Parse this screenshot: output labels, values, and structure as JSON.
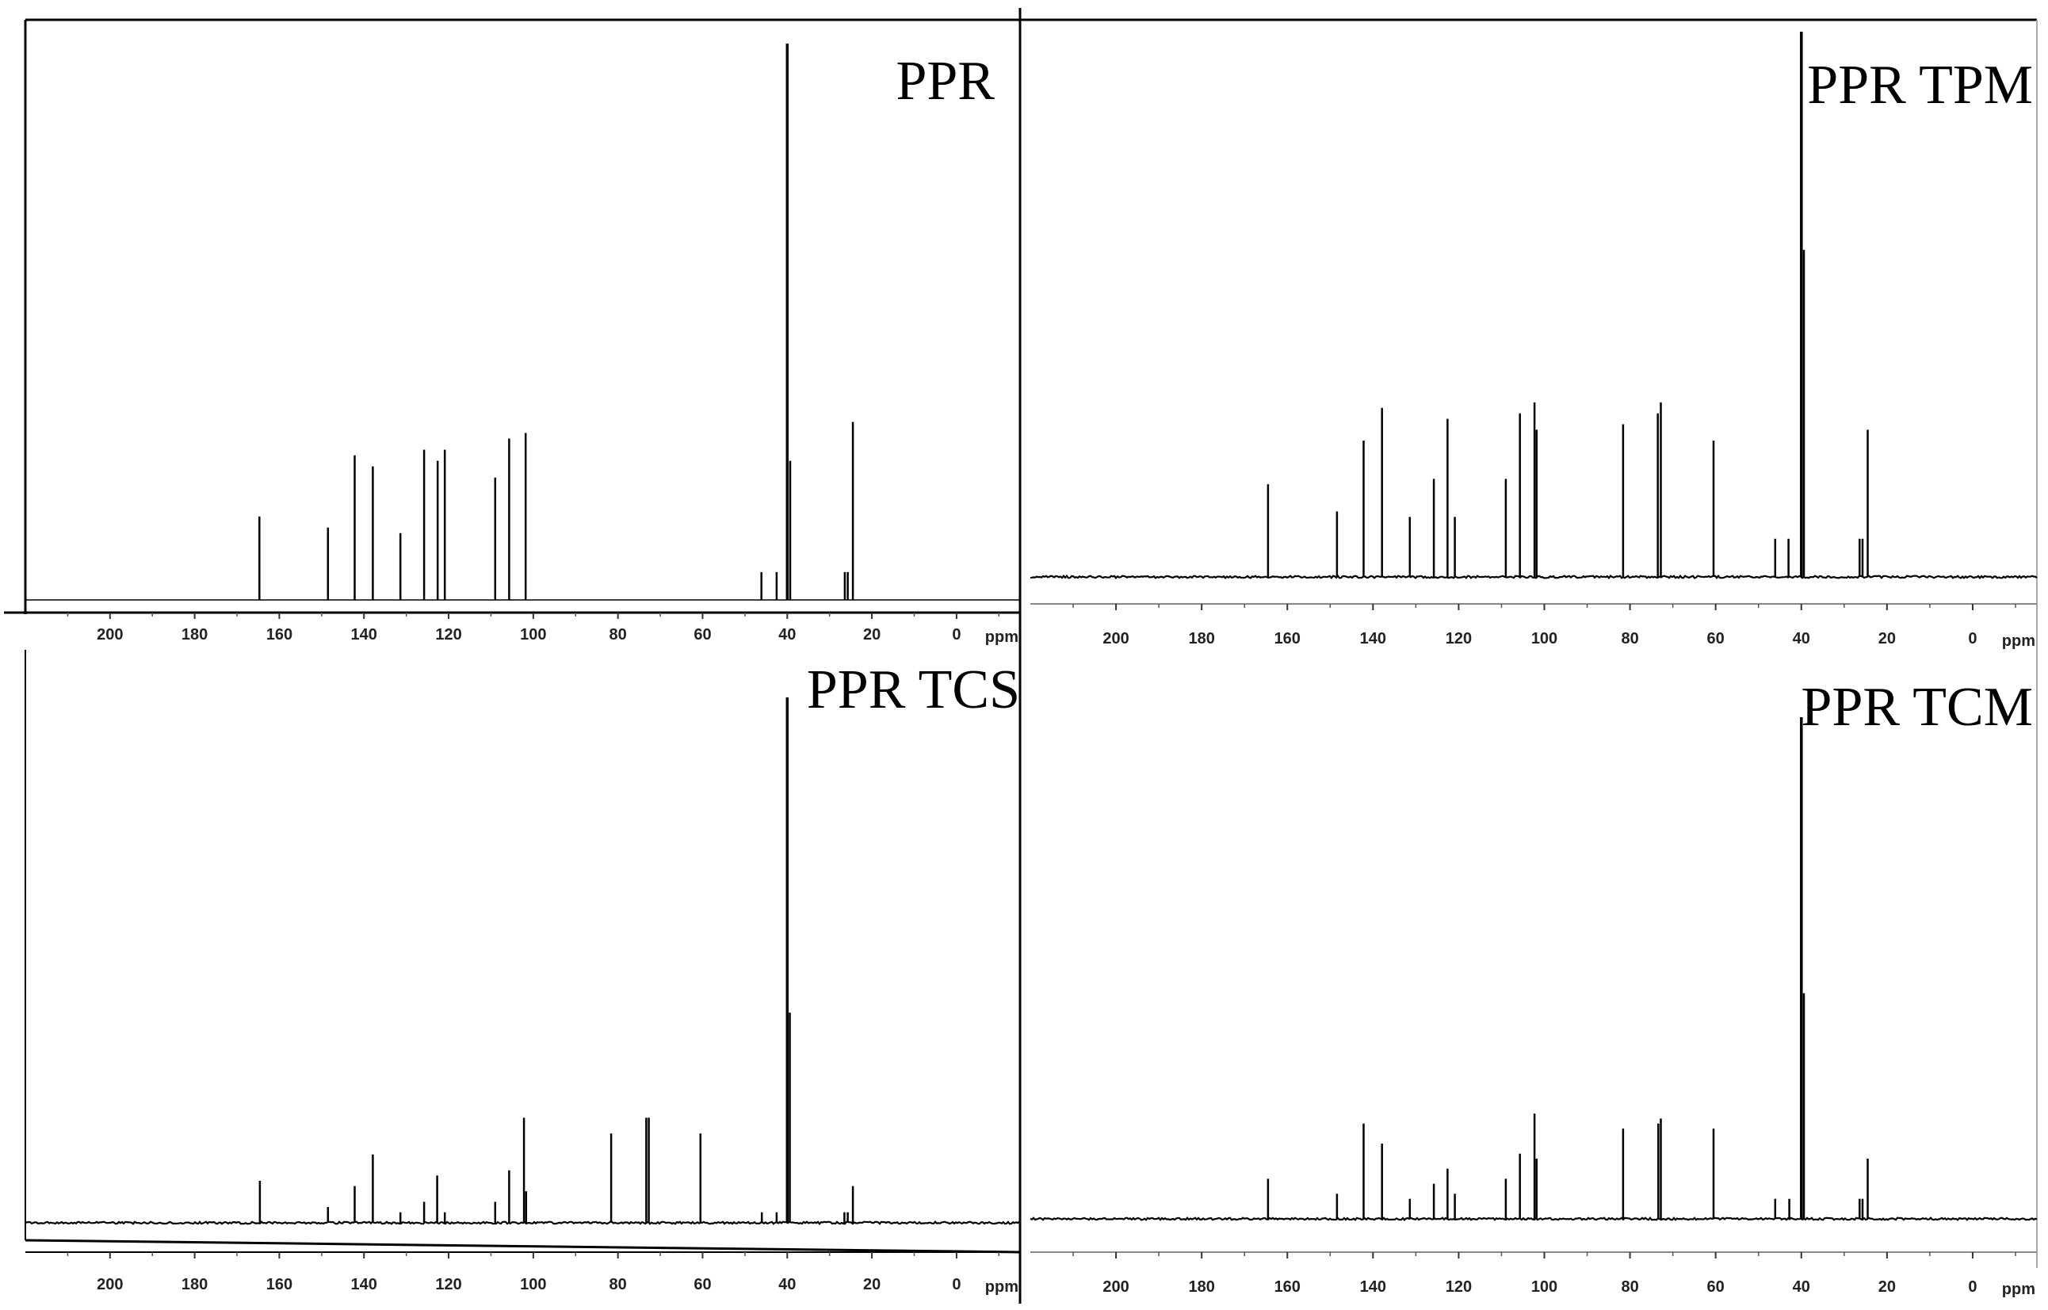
{
  "chart_data": [
    {
      "type": "line",
      "title": "PPR",
      "x_unit": "ppm",
      "x_ticks": [
        200,
        180,
        160,
        140,
        120,
        100,
        80,
        60,
        40,
        20,
        0
      ],
      "xlim": [
        220,
        -15
      ],
      "x_reversed": true,
      "baseline_noise": 0.0,
      "peaks": [
        {
          "ppm": 164.7,
          "h": 0.15
        },
        {
          "ppm": 148.5,
          "h": 0.13
        },
        {
          "ppm": 142.2,
          "h": 0.26
        },
        {
          "ppm": 137.9,
          "h": 0.24
        },
        {
          "ppm": 131.4,
          "h": 0.12
        },
        {
          "ppm": 125.8,
          "h": 0.27
        },
        {
          "ppm": 122.6,
          "h": 0.25
        },
        {
          "ppm": 120.9,
          "h": 0.27
        },
        {
          "ppm": 109.0,
          "h": 0.22
        },
        {
          "ppm": 105.7,
          "h": 0.29
        },
        {
          "ppm": 101.8,
          "h": 0.3
        },
        {
          "ppm": 46.1,
          "h": 0.05
        },
        {
          "ppm": 42.5,
          "h": 0.05
        },
        {
          "ppm": 40.0,
          "h": 1.0
        },
        {
          "ppm": 39.3,
          "h": 0.25
        },
        {
          "ppm": 26.4,
          "h": 0.05
        },
        {
          "ppm": 25.7,
          "h": 0.05
        },
        {
          "ppm": 24.5,
          "h": 0.32
        }
      ]
    },
    {
      "type": "line",
      "title": "PPR TPM",
      "x_unit": "ppm",
      "x_ticks": [
        200,
        180,
        160,
        140,
        120,
        100,
        80,
        60,
        40,
        20,
        0
      ],
      "xlim": [
        220,
        -15
      ],
      "x_reversed": true,
      "baseline_noise": 0.004,
      "peaks": [
        {
          "ppm": 164.5,
          "h": 0.17
        },
        {
          "ppm": 148.4,
          "h": 0.12
        },
        {
          "ppm": 142.2,
          "h": 0.25
        },
        {
          "ppm": 137.9,
          "h": 0.31
        },
        {
          "ppm": 131.4,
          "h": 0.11
        },
        {
          "ppm": 125.8,
          "h": 0.18
        },
        {
          "ppm": 122.6,
          "h": 0.29
        },
        {
          "ppm": 120.9,
          "h": 0.11
        },
        {
          "ppm": 109.0,
          "h": 0.18
        },
        {
          "ppm": 105.7,
          "h": 0.3
        },
        {
          "ppm": 102.3,
          "h": 0.32
        },
        {
          "ppm": 101.8,
          "h": 0.27
        },
        {
          "ppm": 81.6,
          "h": 0.28
        },
        {
          "ppm": 73.5,
          "h": 0.3
        },
        {
          "ppm": 72.8,
          "h": 0.32
        },
        {
          "ppm": 60.5,
          "h": 0.25
        },
        {
          "ppm": 46.1,
          "h": 0.07
        },
        {
          "ppm": 43.0,
          "h": 0.07
        },
        {
          "ppm": 40.0,
          "h": 1.0
        },
        {
          "ppm": 39.4,
          "h": 0.6
        },
        {
          "ppm": 26.4,
          "h": 0.07
        },
        {
          "ppm": 25.7,
          "h": 0.07
        },
        {
          "ppm": 24.5,
          "h": 0.27
        }
      ]
    },
    {
      "type": "line",
      "title": "PPR TCS",
      "x_unit": "ppm",
      "x_ticks": [
        200,
        180,
        160,
        140,
        120,
        100,
        80,
        60,
        40,
        20,
        0
      ],
      "xlim": [
        220,
        -15
      ],
      "x_reversed": true,
      "baseline_noise": 0.004,
      "peaks": [
        {
          "ppm": 164.6,
          "h": 0.08
        },
        {
          "ppm": 148.5,
          "h": 0.03
        },
        {
          "ppm": 142.2,
          "h": 0.07
        },
        {
          "ppm": 137.9,
          "h": 0.13
        },
        {
          "ppm": 131.4,
          "h": 0.02
        },
        {
          "ppm": 125.8,
          "h": 0.04
        },
        {
          "ppm": 122.7,
          "h": 0.09
        },
        {
          "ppm": 120.9,
          "h": 0.02
        },
        {
          "ppm": 109.0,
          "h": 0.04
        },
        {
          "ppm": 105.7,
          "h": 0.1
        },
        {
          "ppm": 102.2,
          "h": 0.2
        },
        {
          "ppm": 101.7,
          "h": 0.06
        },
        {
          "ppm": 81.6,
          "h": 0.17
        },
        {
          "ppm": 73.3,
          "h": 0.2
        },
        {
          "ppm": 72.7,
          "h": 0.2
        },
        {
          "ppm": 60.5,
          "h": 0.17
        },
        {
          "ppm": 46.0,
          "h": 0.02
        },
        {
          "ppm": 42.5,
          "h": 0.02
        },
        {
          "ppm": 40.0,
          "h": 1.0
        },
        {
          "ppm": 39.4,
          "h": 0.4
        },
        {
          "ppm": 26.5,
          "h": 0.02
        },
        {
          "ppm": 25.7,
          "h": 0.02
        },
        {
          "ppm": 24.5,
          "h": 0.07
        }
      ]
    },
    {
      "type": "line",
      "title": "PPR TCM",
      "x_unit": "ppm",
      "x_ticks": [
        200,
        180,
        160,
        140,
        120,
        100,
        80,
        60,
        40,
        20,
        0
      ],
      "xlim": [
        220,
        -15
      ],
      "x_reversed": true,
      "baseline_noise": 0.004,
      "peaks": [
        {
          "ppm": 164.5,
          "h": 0.08
        },
        {
          "ppm": 148.4,
          "h": 0.05
        },
        {
          "ppm": 142.2,
          "h": 0.19
        },
        {
          "ppm": 137.9,
          "h": 0.15
        },
        {
          "ppm": 131.4,
          "h": 0.04
        },
        {
          "ppm": 125.8,
          "h": 0.07
        },
        {
          "ppm": 122.6,
          "h": 0.1
        },
        {
          "ppm": 120.9,
          "h": 0.05
        },
        {
          "ppm": 109.0,
          "h": 0.08
        },
        {
          "ppm": 105.7,
          "h": 0.13
        },
        {
          "ppm": 102.3,
          "h": 0.21
        },
        {
          "ppm": 101.8,
          "h": 0.12
        },
        {
          "ppm": 81.6,
          "h": 0.18
        },
        {
          "ppm": 73.4,
          "h": 0.19
        },
        {
          "ppm": 72.8,
          "h": 0.2
        },
        {
          "ppm": 60.5,
          "h": 0.18
        },
        {
          "ppm": 46.1,
          "h": 0.04
        },
        {
          "ppm": 42.8,
          "h": 0.04
        },
        {
          "ppm": 40.0,
          "h": 1.0
        },
        {
          "ppm": 39.4,
          "h": 0.45
        },
        {
          "ppm": 26.4,
          "h": 0.04
        },
        {
          "ppm": 25.7,
          "h": 0.04
        },
        {
          "ppm": 24.5,
          "h": 0.12
        }
      ]
    }
  ]
}
